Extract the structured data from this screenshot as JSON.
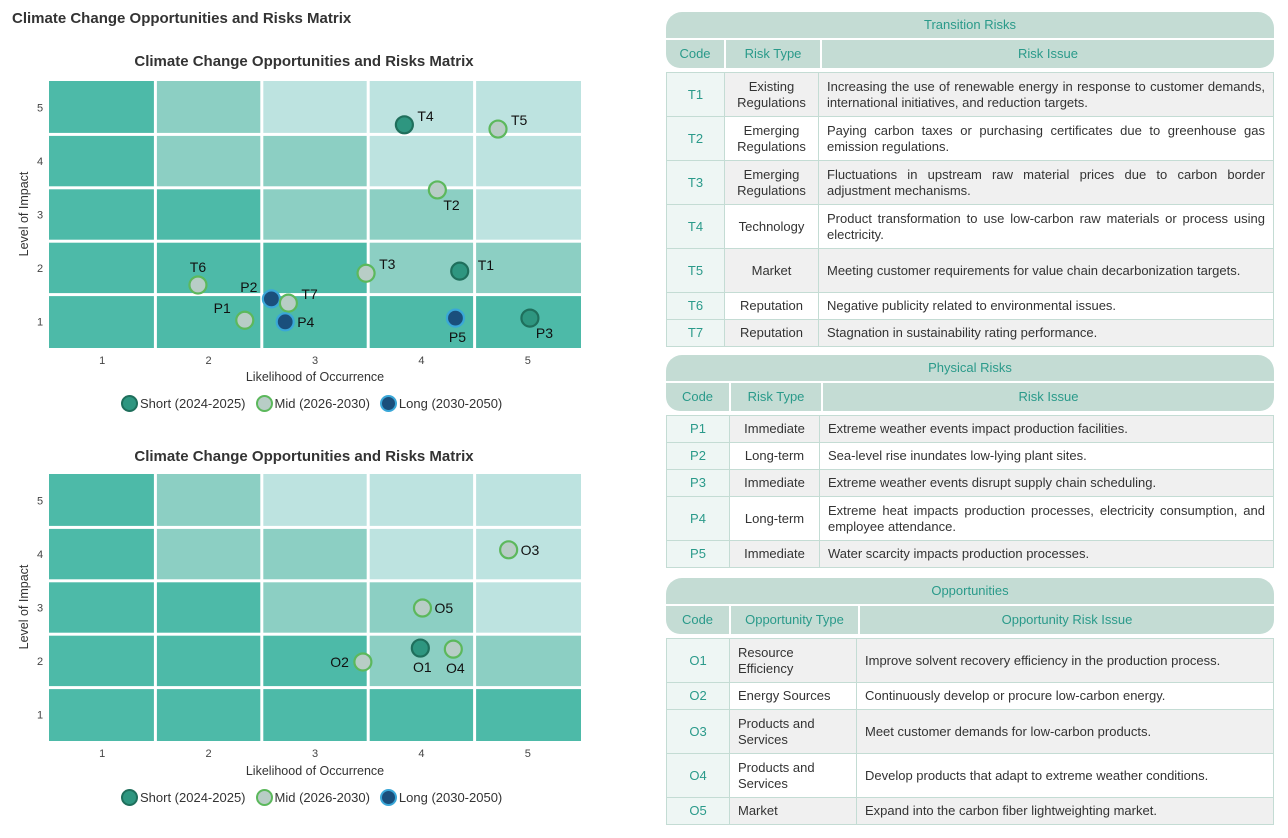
{
  "page_title": "Climate Change Opportunities and Risks Matrix",
  "colors": {
    "cell_dark": "#4dbaa8",
    "cell_mid": "#8ccfc3",
    "cell_light": "#bde3e0",
    "short_fill": "#2e9680",
    "short_stroke": "#1f6f5c",
    "mid_fill": "#b8cdc6",
    "mid_stroke": "#5cb85c",
    "long_fill": "#1a4f7c",
    "long_stroke": "#3aa7d8",
    "table_header_bg": "#c4dcd4",
    "table_header_text": "#2a9a8a"
  },
  "chart_data": [
    {
      "type": "scatter",
      "title": "Climate Change Opportunities and Risks Matrix",
      "xlabel": "Likelihood of Occurrence",
      "ylabel": "Level of Impact",
      "xlim": [
        0.5,
        5.5
      ],
      "ylim": [
        0.5,
        5.5
      ],
      "x_ticks": [
        "1",
        "2",
        "3",
        "4",
        "5"
      ],
      "y_ticks": [
        "1",
        "2",
        "3",
        "4",
        "5"
      ],
      "grid": true,
      "legend_placement": "bottom",
      "legend": [
        {
          "key": "short",
          "label": "Short (2024-2025)"
        },
        {
          "key": "mid",
          "label": "Mid (2026-2030)"
        },
        {
          "key": "long",
          "label": "Long (2030-2050)"
        }
      ],
      "background_levels": [
        [
          "dark",
          "mid",
          "light",
          "light",
          "light"
        ],
        [
          "dark",
          "mid",
          "mid",
          "light",
          "light"
        ],
        [
          "dark",
          "dark",
          "mid",
          "mid",
          "light"
        ],
        [
          "dark",
          "dark",
          "dark",
          "mid",
          "mid"
        ],
        [
          "dark",
          "dark",
          "dark",
          "dark",
          "dark"
        ]
      ],
      "points": [
        {
          "label": "T4",
          "x": 3.84,
          "y": 4.68,
          "term": "short",
          "label_pos": "upper-right"
        },
        {
          "label": "T5",
          "x": 4.72,
          "y": 4.6,
          "term": "mid",
          "label_pos": "upper-right"
        },
        {
          "label": "T2",
          "x": 4.15,
          "y": 3.46,
          "term": "mid",
          "label_pos": "lower-right"
        },
        {
          "label": "T3",
          "x": 3.48,
          "y": 1.9,
          "term": "mid",
          "label_pos": "upper-right"
        },
        {
          "label": "T1",
          "x": 4.36,
          "y": 1.94,
          "term": "short",
          "label_pos": "right-up"
        },
        {
          "label": "T6",
          "x": 1.9,
          "y": 1.68,
          "term": "mid",
          "label_pos": "above"
        },
        {
          "label": "P2",
          "x": 2.59,
          "y": 1.42,
          "term": "long",
          "label_pos": "upper-left"
        },
        {
          "label": "T7",
          "x": 2.75,
          "y": 1.34,
          "term": "mid",
          "label_pos": "upper-right"
        },
        {
          "label": "P1",
          "x": 2.34,
          "y": 1.02,
          "term": "mid",
          "label_pos": "upper-left"
        },
        {
          "label": "P4",
          "x": 2.72,
          "y": 0.99,
          "term": "long",
          "label_pos": "right"
        },
        {
          "label": "P5",
          "x": 4.32,
          "y": 1.06,
          "term": "long",
          "label_pos": "below"
        },
        {
          "label": "P3",
          "x": 5.02,
          "y": 1.06,
          "term": "short",
          "label_pos": "lower-right"
        }
      ]
    },
    {
      "type": "scatter",
      "title": "Climate Change Opportunities and Risks Matrix",
      "xlabel": "Likelihood of Occurrence",
      "ylabel": "Level of Impact",
      "xlim": [
        0.5,
        5.5
      ],
      "ylim": [
        0.5,
        5.5
      ],
      "x_ticks": [
        "1",
        "2",
        "3",
        "4",
        "5"
      ],
      "y_ticks": [
        "1",
        "2",
        "3",
        "4",
        "5"
      ],
      "grid": true,
      "legend_placement": "bottom",
      "legend": [
        {
          "key": "short",
          "label": "Short (2024-2025)"
        },
        {
          "key": "mid",
          "label": "Mid (2026-2030)"
        },
        {
          "key": "long",
          "label": "Long (2030-2050)"
        }
      ],
      "background_levels": [
        [
          "dark",
          "mid",
          "light",
          "light",
          "light"
        ],
        [
          "dark",
          "mid",
          "mid",
          "light",
          "light"
        ],
        [
          "dark",
          "dark",
          "mid",
          "mid",
          "light"
        ],
        [
          "dark",
          "dark",
          "dark",
          "mid",
          "mid"
        ],
        [
          "dark",
          "dark",
          "dark",
          "dark",
          "dark"
        ]
      ],
      "points": [
        {
          "label": "O3",
          "x": 4.82,
          "y": 4.08,
          "term": "mid",
          "label_pos": "right"
        },
        {
          "label": "O5",
          "x": 4.01,
          "y": 2.99,
          "term": "mid",
          "label_pos": "right"
        },
        {
          "label": "O1",
          "x": 3.99,
          "y": 2.24,
          "term": "short",
          "label_pos": "below"
        },
        {
          "label": "O4",
          "x": 4.3,
          "y": 2.22,
          "term": "mid",
          "label_pos": "below"
        },
        {
          "label": "O2",
          "x": 3.45,
          "y": 1.98,
          "term": "mid",
          "label_pos": "left"
        }
      ]
    }
  ],
  "tables": [
    {
      "caption": "Transition Risks",
      "headers": [
        "Code",
        "Risk Type",
        "Risk Issue"
      ],
      "rows": [
        {
          "code": "T1",
          "type": "Existing Regulations",
          "issue": "Increasing the use of renewable energy in response to customer demands, international initiatives, and reduction targets."
        },
        {
          "code": "T2",
          "type": "Emerging Regulations",
          "issue": "Paying carbon taxes or purchasing certificates due to greenhouse gas emission regulations."
        },
        {
          "code": "T3",
          "type": "Emerging Regulations",
          "issue": "Fluctuations in upstream raw material prices due to carbon border adjustment mechanisms."
        },
        {
          "code": "T4",
          "type": "Technology",
          "issue": "Product transformation to use low-carbon raw materials or process using electricity."
        },
        {
          "code": "T5",
          "type": "Market",
          "issue": "Meeting customer requirements for value chain decarbonization targets."
        },
        {
          "code": "T6",
          "type": "Reputation",
          "issue": "Negative publicity related to environmental issues."
        },
        {
          "code": "T7",
          "type": "Reputation",
          "issue": "Stagnation in sustainability rating performance."
        }
      ]
    },
    {
      "caption": "Physical Risks",
      "headers": [
        "Code",
        "Risk Type",
        "Risk Issue"
      ],
      "rows": [
        {
          "code": "P1",
          "type": "Immediate",
          "issue": "Extreme weather events impact production facilities."
        },
        {
          "code": "P2",
          "type": "Long-term",
          "issue": "Sea-level rise inundates low-lying plant sites."
        },
        {
          "code": "P3",
          "type": "Immediate",
          "issue": "Extreme weather events disrupt supply chain scheduling."
        },
        {
          "code": "P4",
          "type": "Long-term",
          "issue": "Extreme heat impacts production processes, electricity consumption, and employee attendance."
        },
        {
          "code": "P5",
          "type": "Immediate",
          "issue": "Water scarcity impacts production processes."
        }
      ]
    },
    {
      "caption": "Opportunities",
      "headers": [
        "Code",
        "Opportunity Type",
        "Opportunity Risk Issue"
      ],
      "rows": [
        {
          "code": "O1",
          "type": "Resource Efficiency",
          "issue": "Improve solvent recovery efficiency in the production process."
        },
        {
          "code": "O2",
          "type": "Energy Sources",
          "issue": "Continuously develop or procure low-carbon energy."
        },
        {
          "code": "O3",
          "type": "Products and Services",
          "issue": "Meet customer demands for low-carbon products."
        },
        {
          "code": "O4",
          "type": "Products and Services",
          "issue": "Develop products that adapt to extreme weather conditions."
        },
        {
          "code": "O5",
          "type": "Market",
          "issue": "Expand into the carbon fiber lightweighting market."
        }
      ]
    }
  ]
}
